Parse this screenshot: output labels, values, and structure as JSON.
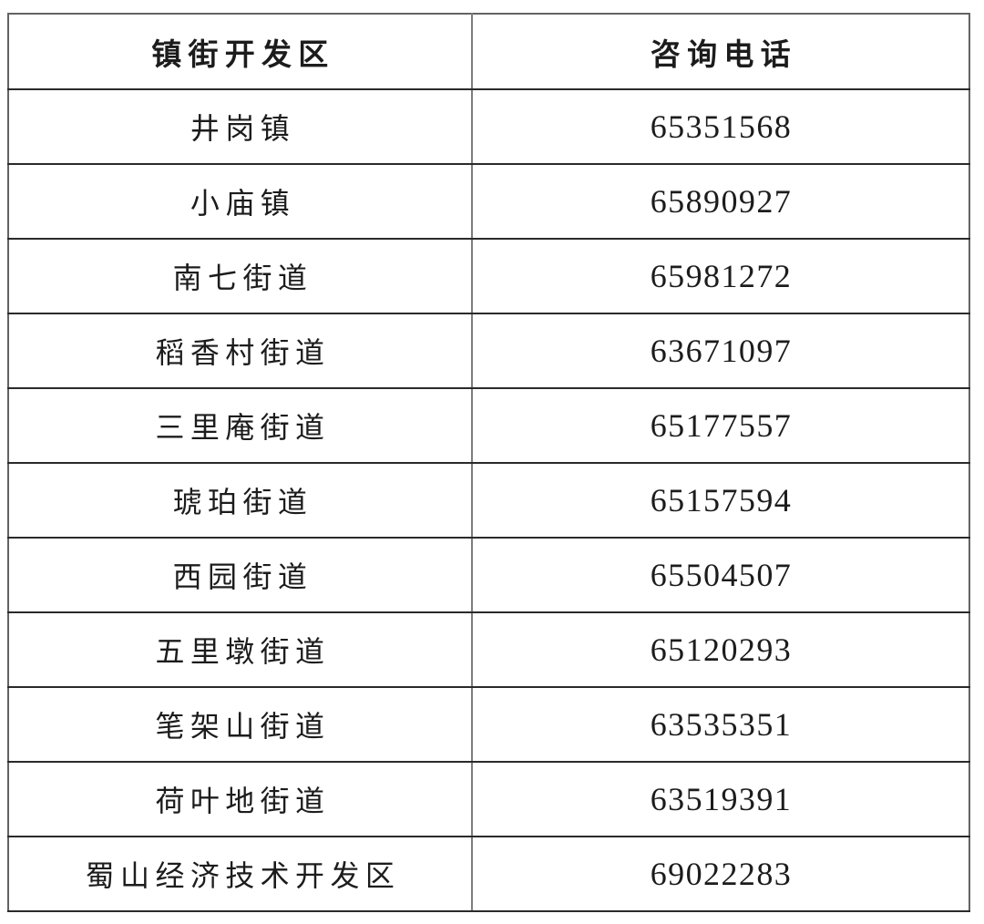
{
  "page": {
    "background_color": "#ffffff",
    "text_color": "#1c1c1c",
    "horizontal_rule_color": "#2a2a2a",
    "vertical_rule_color": "#7d7d7d",
    "outer_border_color": "#636363"
  },
  "table": {
    "columns": [
      {
        "key": "district",
        "label": "镇街开发区"
      },
      {
        "key": "phone",
        "label": "咨询电话"
      }
    ],
    "rows": [
      {
        "district": "井岗镇",
        "phone": "65351568"
      },
      {
        "district": "小庙镇",
        "phone": "65890927"
      },
      {
        "district": "南七街道",
        "phone": "65981272"
      },
      {
        "district": "稻香村街道",
        "phone": "63671097"
      },
      {
        "district": "三里庵街道",
        "phone": "65177557"
      },
      {
        "district": "琥珀街道",
        "phone": "65157594"
      },
      {
        "district": "西园街道",
        "phone": "65504507"
      },
      {
        "district": "五里墩街道",
        "phone": "65120293"
      },
      {
        "district": "笔架山街道",
        "phone": "63535351"
      },
      {
        "district": "荷叶地街道",
        "phone": "63519391"
      },
      {
        "district": "蜀山经济技术开发区",
        "phone": "69022283"
      }
    ]
  }
}
